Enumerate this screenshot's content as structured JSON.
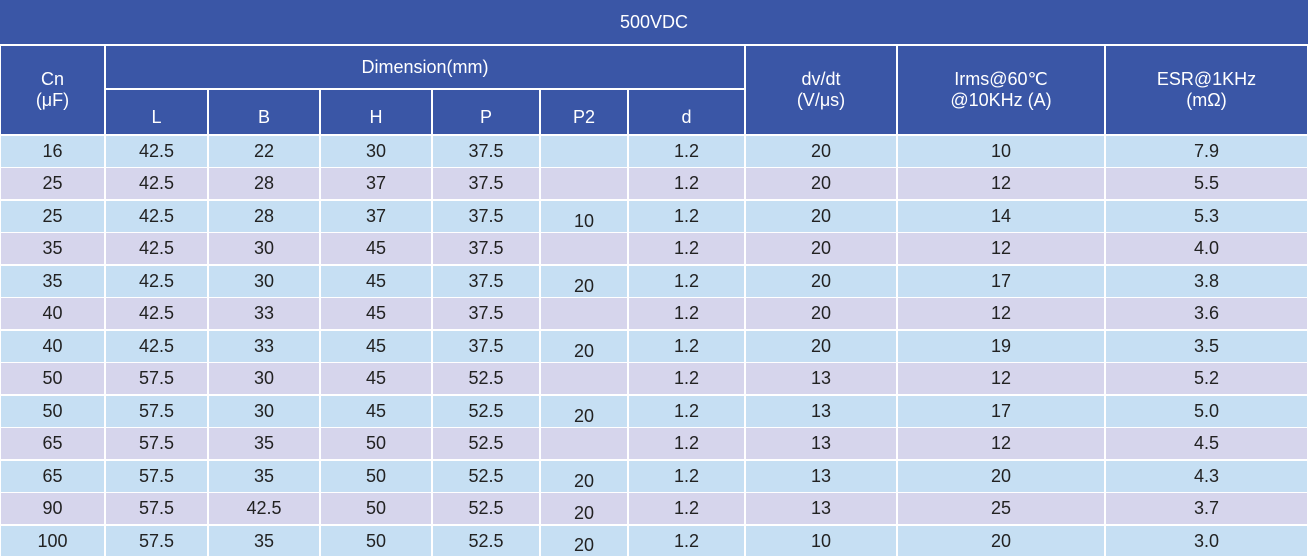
{
  "header": {
    "title": "500VDC",
    "cn": [
      "Cn",
      "(μF)"
    ],
    "dimension": "Dimension(mm)",
    "sub": [
      "L",
      "B",
      "H",
      "P",
      "P2",
      "d"
    ],
    "dvdt": [
      "dv/dt",
      "(V/μs)"
    ],
    "irms": [
      "Irms@60℃",
      "@10KHz (A)"
    ],
    "esr": [
      "ESR@1KHz",
      "(mΩ)"
    ]
  },
  "table": {
    "rows": [
      [
        "16",
        "42.5",
        "22",
        "30",
        "37.5",
        null,
        "1.2",
        "20",
        "10",
        "7.9"
      ],
      [
        "25",
        "42.5",
        "28",
        "37",
        "37.5",
        null,
        "1.2",
        "20",
        "12",
        "5.5"
      ],
      [
        "25",
        "42.5",
        "28",
        "37",
        "37.5",
        "10",
        "1.2",
        "20",
        "14",
        "5.3"
      ],
      [
        "35",
        "42.5",
        "30",
        "45",
        "37.5",
        null,
        "1.2",
        "20",
        "12",
        "4.0"
      ],
      [
        "35",
        "42.5",
        "30",
        "45",
        "37.5",
        "20",
        "1.2",
        "20",
        "17",
        "3.8"
      ],
      [
        "40",
        "42.5",
        "33",
        "45",
        "37.5",
        null,
        "1.2",
        "20",
        "12",
        "3.6"
      ],
      [
        "40",
        "42.5",
        "33",
        "45",
        "37.5",
        "20",
        "1.2",
        "20",
        "19",
        "3.5"
      ],
      [
        "50",
        "57.5",
        "30",
        "45",
        "52.5",
        null,
        "1.2",
        "13",
        "12",
        "5.2"
      ],
      [
        "50",
        "57.5",
        "30",
        "45",
        "52.5",
        "20",
        "1.2",
        "13",
        "17",
        "5.0"
      ],
      [
        "65",
        "57.5",
        "35",
        "50",
        "52.5",
        null,
        "1.2",
        "13",
        "12",
        "4.5"
      ],
      [
        "65",
        "57.5",
        "35",
        "50",
        "52.5",
        "20",
        "1.2",
        "13",
        "20",
        "4.3"
      ],
      [
        "90",
        "57.5",
        "42.5",
        "50",
        "52.5",
        "20",
        "1.2",
        "13",
        "25",
        "3.7"
      ],
      [
        "100",
        "57.5",
        "35",
        "50",
        "52.5",
        "20",
        "1.2",
        "10",
        "20",
        "3.0"
      ]
    ]
  }
}
